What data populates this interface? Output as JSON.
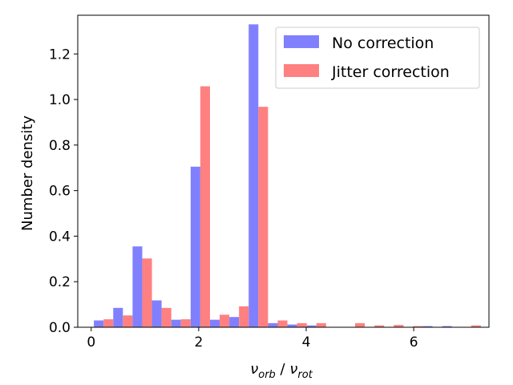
{
  "chart_data": {
    "type": "bar",
    "xlabel": {
      "main": "ν",
      "sub1": "orb",
      "sep": " / ",
      "main2": "ν",
      "sub2": "rot"
    },
    "ylabel": "Number density",
    "xlim": [
      -0.25,
      7.4
    ],
    "ylim": [
      0,
      1.37
    ],
    "xticks": [
      0,
      2,
      4,
      6
    ],
    "yticks": [
      "0.0",
      "0.2",
      "0.4",
      "0.6",
      "0.8",
      "1.0",
      "1.2"
    ],
    "grid": false,
    "legend_position": "top-right",
    "bin_width": 0.36,
    "bin_left_edges": [
      0.05,
      0.41,
      0.77,
      1.13,
      1.49,
      1.85,
      2.21,
      2.57,
      2.93,
      3.29,
      3.65,
      4.01,
      4.37,
      4.73,
      5.09,
      5.45,
      5.81,
      6.17,
      6.53,
      6.89
    ],
    "series": [
      {
        "name": "No correction",
        "color": "#8080ff",
        "values": [
          0.03,
          0.085,
          0.355,
          0.118,
          0.033,
          0.705,
          0.033,
          0.045,
          1.33,
          0.018,
          0.012,
          0.008,
          0.0,
          0.0,
          0.0,
          0.0,
          0.0,
          0.005,
          0.005,
          0.0
        ]
      },
      {
        "name": "Jitter correction",
        "color": "#ff8080",
        "values": [
          0.035,
          0.052,
          0.302,
          0.085,
          0.035,
          1.058,
          0.055,
          0.092,
          0.968,
          0.03,
          0.018,
          0.018,
          0.0,
          0.018,
          0.008,
          0.01,
          0.005,
          0.0,
          0.0,
          0.008
        ]
      }
    ]
  }
}
